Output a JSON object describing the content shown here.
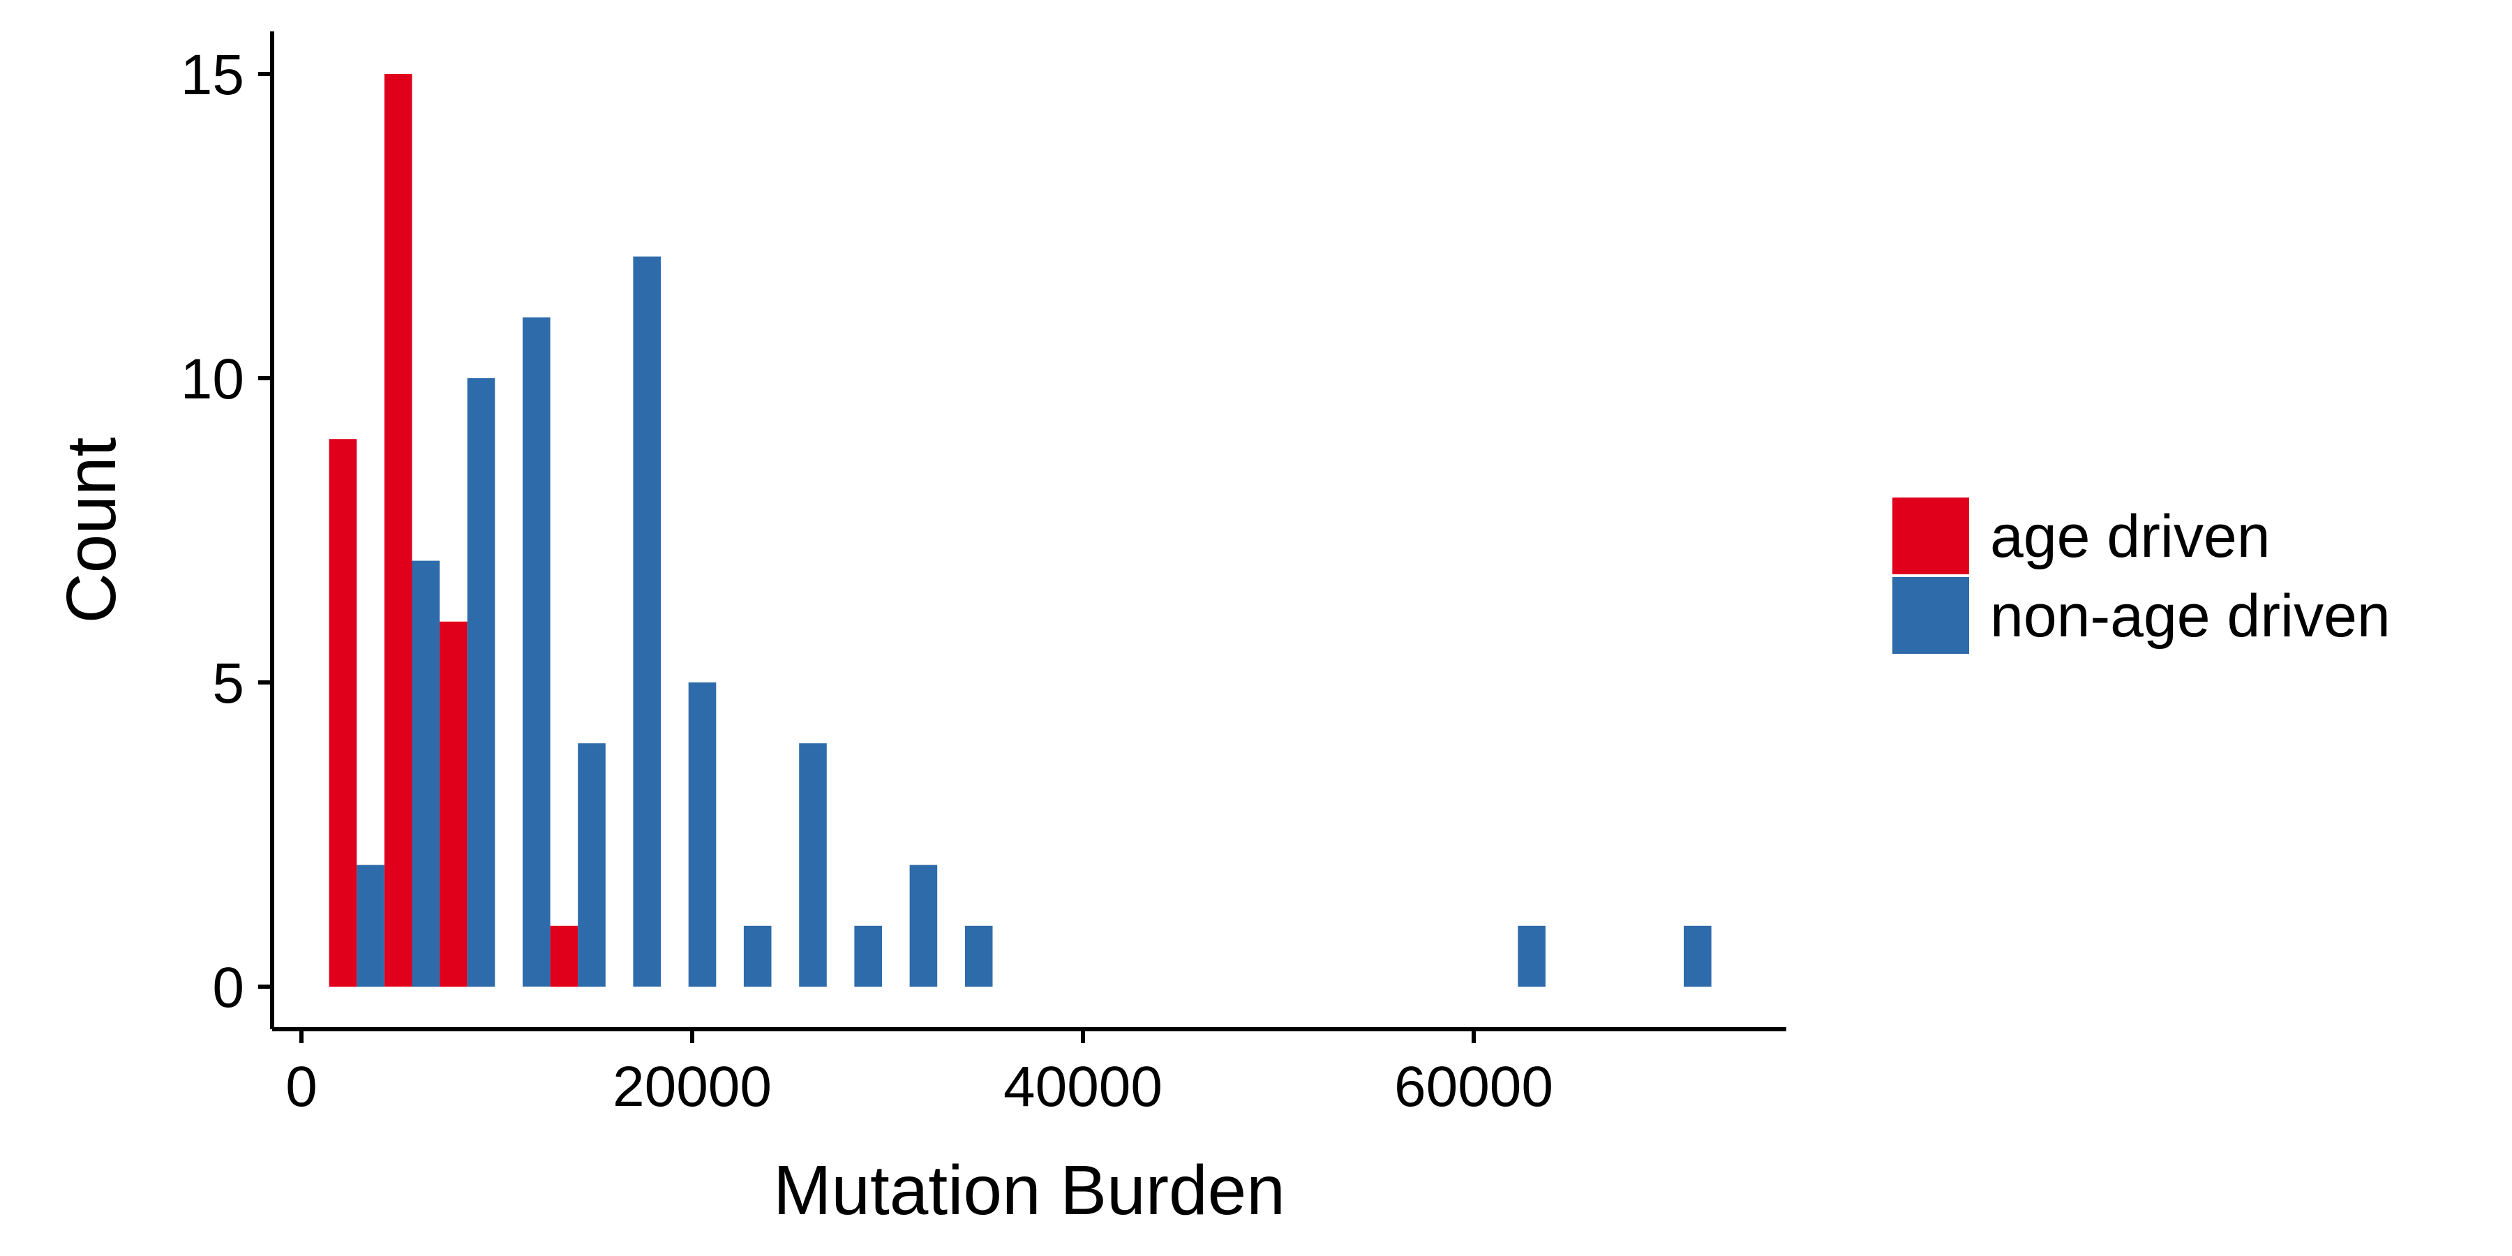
{
  "chart_data": {
    "type": "bar",
    "xlabel": "Mutation Burden",
    "ylabel": "Count",
    "xlim": [
      -1500,
      76000
    ],
    "ylim": [
      -0.7,
      15.7
    ],
    "x_ticks": [
      0,
      20000,
      40000,
      60000
    ],
    "x_tick_labels": [
      "0",
      "20000",
      "40000",
      "60000"
    ],
    "y_ticks": [
      0,
      5,
      10,
      15
    ],
    "y_tick_labels": [
      "0",
      "5",
      "10",
      "15"
    ],
    "grid": false,
    "legend_position": "right",
    "bin_width": 2830,
    "bin_centers": [
      2830,
      5660,
      8490,
      11320,
      14150,
      16980,
      19810,
      22640,
      25470,
      28300,
      31130,
      33960,
      62260,
      70750
    ],
    "series": [
      {
        "name": "age driven",
        "color": "#E0001B",
        "values": [
          9,
          15,
          6,
          0,
          1,
          0,
          0,
          0,
          0,
          0,
          0,
          0,
          0,
          0
        ]
      },
      {
        "name": "non-age driven",
        "color": "#2E6BAA",
        "values": [
          2,
          7,
          10,
          11,
          4,
          12,
          5,
          1,
          4,
          1,
          2,
          1,
          1,
          1
        ]
      }
    ]
  }
}
